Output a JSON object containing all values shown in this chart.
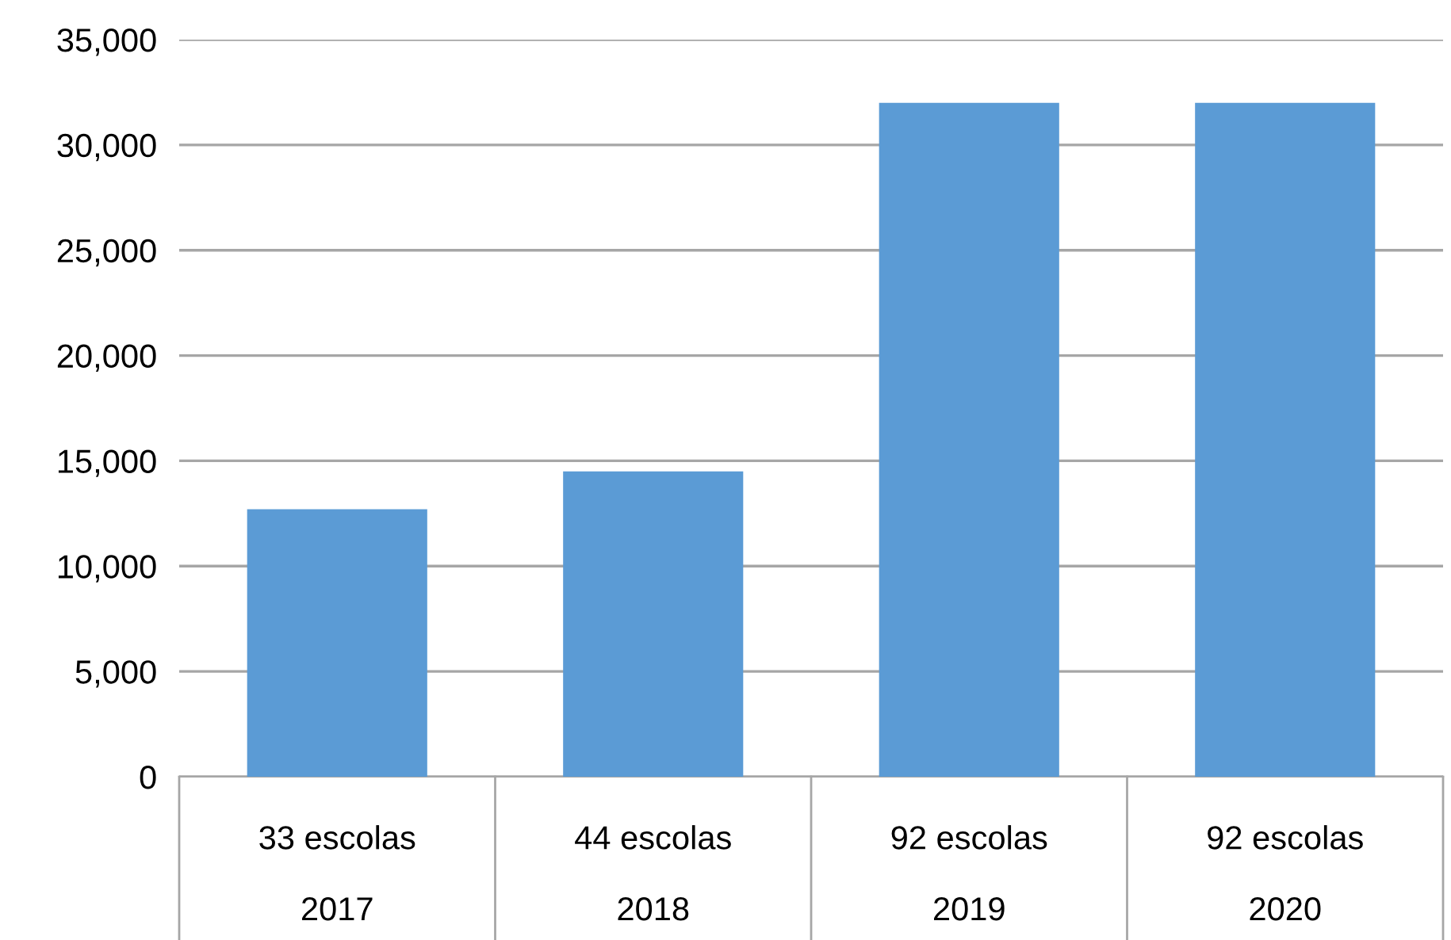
{
  "chart_data": {
    "type": "bar",
    "categories": [
      "33 escolas\n\n2017",
      "44 escolas\n\n2018",
      "92 escolas\n\n2019",
      "92 escolas\n\n2020"
    ],
    "values": [
      12700,
      14500,
      32000,
      32000
    ],
    "color": "#5b9bd5",
    "ylim": [
      0,
      35000
    ],
    "yticks": [
      {
        "value": 0,
        "label": "0"
      },
      {
        "value": 5000,
        "label": "5,000"
      },
      {
        "value": 10000,
        "label": "10,000"
      },
      {
        "value": 15000,
        "label": "15,000"
      },
      {
        "value": 20000,
        "label": "20,000"
      },
      {
        "value": 25000,
        "label": "25,000"
      },
      {
        "value": 30000,
        "label": "30,000"
      },
      {
        "value": 35000,
        "label": "35,000"
      }
    ],
    "grid": "y",
    "legend": false
  }
}
